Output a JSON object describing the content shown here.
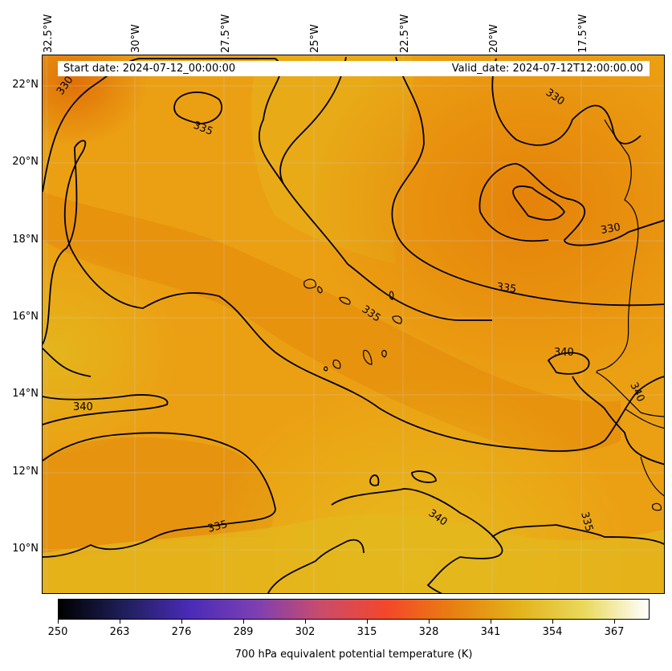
{
  "map": {
    "lon_labels": [
      "32.5°W",
      "30°W",
      "27.5°W",
      "25°W",
      "22.5°W",
      "20°W",
      "17.5°W"
    ],
    "lat_labels": [
      "22°N",
      "20°N",
      "18°N",
      "16°N",
      "14°N",
      "12°N",
      "10°N"
    ],
    "start_date": "Start date: 2024-07-12_00:00:00",
    "valid_date": "Valid_date: 2024-07-12T12:00:00.00",
    "contour_labels": [
      "330",
      "335",
      "330",
      "335",
      "335",
      "340",
      "340",
      "340",
      "335",
      "340",
      "335"
    ],
    "contour_color": "#000000",
    "field_colors": {
      "dark": "#e8860a",
      "mid": "#eba013",
      "light": "#e4b91e"
    }
  },
  "colorbar": {
    "ticks": [
      "250",
      "263",
      "276",
      "289",
      "302",
      "315",
      "328",
      "341",
      "354",
      "367"
    ],
    "title": "700 hPa equivalent potential temperature (K)",
    "colormap_name": "CMRmap",
    "colors": [
      "#000000",
      "#1f1f5a",
      "#4a2bb8",
      "#7c3fb4",
      "#c94c6c",
      "#f4472a",
      "#e87f10",
      "#e3b21a",
      "#ead85a",
      "#ffffff"
    ]
  }
}
